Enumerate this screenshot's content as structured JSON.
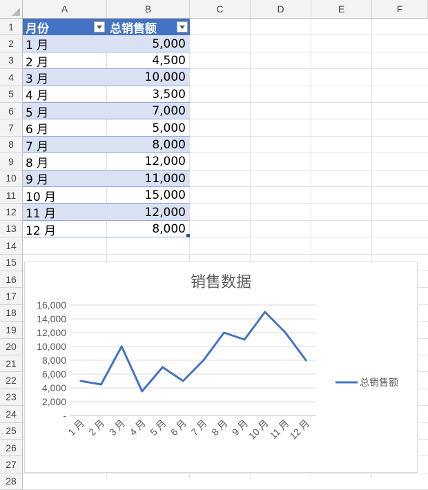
{
  "columns": [
    "A",
    "B",
    "C",
    "D",
    "E",
    "F"
  ],
  "rows": [
    "1",
    "2",
    "3",
    "4",
    "5",
    "6",
    "7",
    "8",
    "9",
    "10",
    "11",
    "12",
    "13",
    "14",
    "15",
    "16",
    "17",
    "18",
    "19",
    "20",
    "21",
    "22",
    "23",
    "24",
    "25",
    "26",
    "27",
    "28"
  ],
  "table": {
    "headers": [
      "月份",
      "总销售额"
    ],
    "rows": [
      {
        "month": "1 月",
        "sales": "5,000"
      },
      {
        "month": "2 月",
        "sales": "4,500"
      },
      {
        "month": "3 月",
        "sales": "10,000"
      },
      {
        "month": "4 月",
        "sales": "3,500"
      },
      {
        "month": "5 月",
        "sales": "7,000"
      },
      {
        "month": "6 月",
        "sales": "5,000"
      },
      {
        "month": "7 月",
        "sales": "8,000"
      },
      {
        "month": "8 月",
        "sales": "12,000"
      },
      {
        "month": "9 月",
        "sales": "11,000"
      },
      {
        "month": "10 月",
        "sales": "15,000"
      },
      {
        "month": "11 月",
        "sales": "12,000"
      },
      {
        "month": "12 月",
        "sales": "8,000"
      }
    ]
  },
  "colors": {
    "header": "#4472c4",
    "band": "#d9e1f2",
    "line": "#4472c4"
  },
  "chart_data": {
    "type": "line",
    "title": "销售数据",
    "categories": [
      "1 月",
      "2 月",
      "3 月",
      "4 月",
      "5 月",
      "6 月",
      "7 月",
      "8 月",
      "9 月",
      "10 月",
      "11 月",
      "12 月"
    ],
    "series": [
      {
        "name": "总销售额",
        "values": [
          5000,
          4500,
          10000,
          3500,
          7000,
          5000,
          8000,
          12000,
          11000,
          15000,
          12000,
          8000
        ]
      }
    ],
    "yticks": [
      "-",
      "2,000",
      "4,000",
      "6,000",
      "8,000",
      "10,000",
      "12,000",
      "14,000",
      "16,000"
    ],
    "ylim": [
      0,
      16000
    ],
    "grid": true,
    "legend": "right"
  }
}
